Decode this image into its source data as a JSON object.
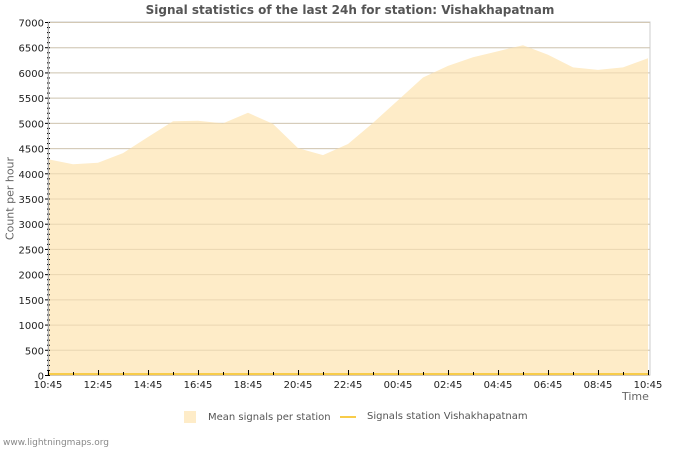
{
  "title": "Signal statistics of the last 24h for station: Vishakhapatnam",
  "axes": {
    "ylabel": "Count per hour",
    "xlabel": "Time",
    "yticks": [
      "0",
      "500",
      "1000",
      "1500",
      "2000",
      "2500",
      "3000",
      "3500",
      "4000",
      "4500",
      "5000",
      "5500",
      "6000",
      "6500",
      "7000"
    ],
    "xticks": [
      "10:45",
      "12:45",
      "14:45",
      "16:45",
      "18:45",
      "20:45",
      "22:45",
      "00:45",
      "02:45",
      "04:45",
      "06:45",
      "08:45",
      "10:45"
    ]
  },
  "legend": {
    "mean_label": "Mean signals per station",
    "station_label": "Signals station Vishakhapatnam"
  },
  "colors": {
    "mean_fill": "#feecc8",
    "station_line": "#f8cc4a",
    "grid": "#cccccc",
    "grid_in_area": "#d9c5a0"
  },
  "footer": "www.lightningmaps.org",
  "chart_data": {
    "type": "area",
    "title": "Signal statistics of the last 24h for station: Vishakhapatnam",
    "xlabel": "Time",
    "ylabel": "Count per hour",
    "ylim": [
      0,
      7000
    ],
    "grid": true,
    "legend_position": "bottom",
    "x": [
      "10:45",
      "11:45",
      "12:45",
      "13:45",
      "14:45",
      "15:45",
      "16:45",
      "17:45",
      "18:45",
      "19:45",
      "20:45",
      "21:45",
      "22:45",
      "23:45",
      "00:45",
      "01:45",
      "02:45",
      "03:45",
      "04:45",
      "05:45",
      "06:45",
      "07:45",
      "08:45",
      "09:45",
      "10:45"
    ],
    "series": [
      {
        "name": "Mean signals per station",
        "type": "area",
        "values": [
          4280,
          4180,
          4210,
          4400,
          4720,
          5030,
          5040,
          4990,
          5200,
          4980,
          4500,
          4360,
          4580,
          5000,
          5450,
          5900,
          6130,
          6300,
          6420,
          6540,
          6350,
          6100,
          6050,
          6100,
          6280
        ]
      },
      {
        "name": "Signals station Vishakhapatnam",
        "type": "line",
        "values": [
          0,
          0,
          0,
          0,
          0,
          0,
          0,
          0,
          0,
          0,
          0,
          0,
          0,
          0,
          0,
          0,
          0,
          0,
          0,
          0,
          0,
          0,
          0,
          0,
          0
        ]
      }
    ]
  }
}
